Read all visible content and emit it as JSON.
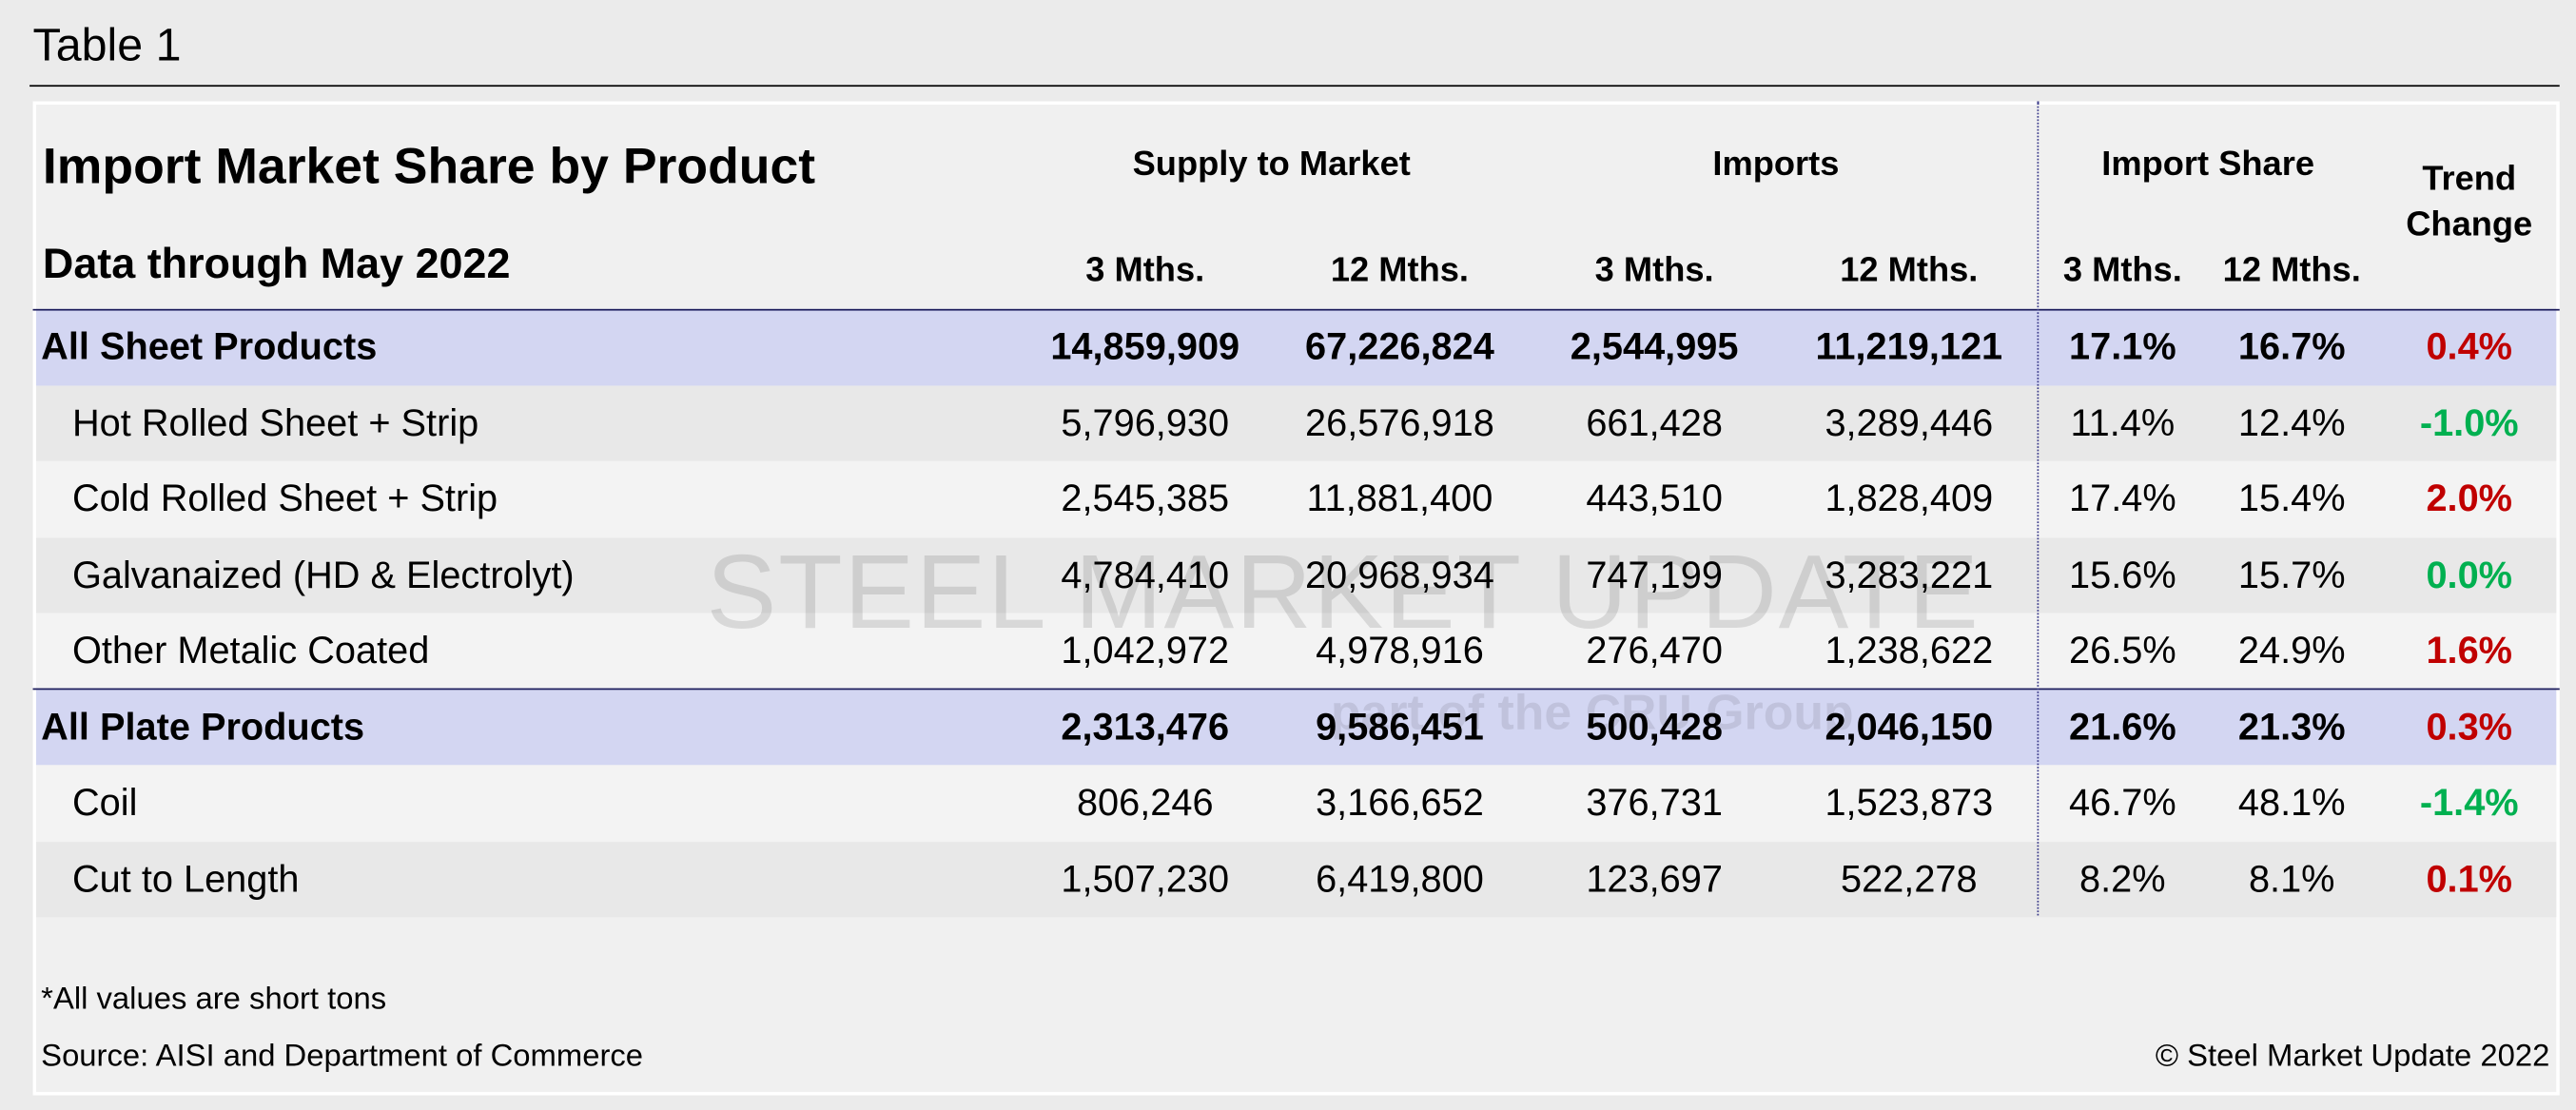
{
  "header": {
    "label": "Table 1"
  },
  "table": {
    "title": "Import Market Share by Product",
    "subtitle": "Data through May 2022",
    "groups": [
      "Supply to Market",
      "Imports",
      "Import Share"
    ],
    "trend_header": [
      "Trend",
      "Change"
    ],
    "columns": [
      "3 Mths.",
      "12 Mths.",
      "3 Mths.",
      "12 Mths.",
      "3 Mths.",
      "12 Mths."
    ],
    "rows": [
      {
        "label": "All Sheet Products",
        "summary": true,
        "values": [
          "14,859,909",
          "67,226,824",
          "2,544,995",
          "11,219,121",
          "17.1%",
          "16.7%"
        ],
        "trend": "0.4%",
        "trend_color": "#c00000"
      },
      {
        "label": "Hot Rolled Sheet + Strip",
        "summary": false,
        "values": [
          "5,796,930",
          "26,576,918",
          "661,428",
          "3,289,446",
          "11.4%",
          "12.4%"
        ],
        "trend": "-1.0%",
        "trend_color": "#00b050"
      },
      {
        "label": "Cold Rolled Sheet + Strip",
        "summary": false,
        "values": [
          "2,545,385",
          "11,881,400",
          "443,510",
          "1,828,409",
          "17.4%",
          "15.4%"
        ],
        "trend": "2.0%",
        "trend_color": "#c00000"
      },
      {
        "label": "Galvanaized (HD & Electrolyt)",
        "summary": false,
        "values": [
          "4,784,410",
          "20,968,934",
          "747,199",
          "3,283,221",
          "15.6%",
          "15.7%"
        ],
        "trend": "0.0%",
        "trend_color": "#00b050"
      },
      {
        "label": "Other Metalic Coated",
        "summary": false,
        "values": [
          "1,042,972",
          "4,978,916",
          "276,470",
          "1,238,622",
          "26.5%",
          "24.9%"
        ],
        "trend": "1.6%",
        "trend_color": "#c00000"
      },
      {
        "label": "All Plate Products",
        "summary": true,
        "values": [
          "2,313,476",
          "9,586,451",
          "500,428",
          "2,046,150",
          "21.6%",
          "21.3%"
        ],
        "trend": "0.3%",
        "trend_color": "#c00000"
      },
      {
        "label": "Coil",
        "summary": false,
        "values": [
          "806,246",
          "3,166,652",
          "376,731",
          "1,523,873",
          "46.7%",
          "48.1%"
        ],
        "trend": "-1.4%",
        "trend_color": "#00b050"
      },
      {
        "label": "Cut to Length",
        "summary": false,
        "values": [
          "1,507,230",
          "6,419,800",
          "123,697",
          "522,278",
          "8.2%",
          "8.1%"
        ],
        "trend": "0.1%",
        "trend_color": "#c00000"
      }
    ]
  },
  "watermark": {
    "brand": "STEEL MARKET UPDATE",
    "tagline": "part of the CRU Group"
  },
  "footer": {
    "note": "*All values are short tons",
    "source": "Source: AISI and Department of Commerce",
    "copyright": "© Steel Market Update 2022"
  }
}
